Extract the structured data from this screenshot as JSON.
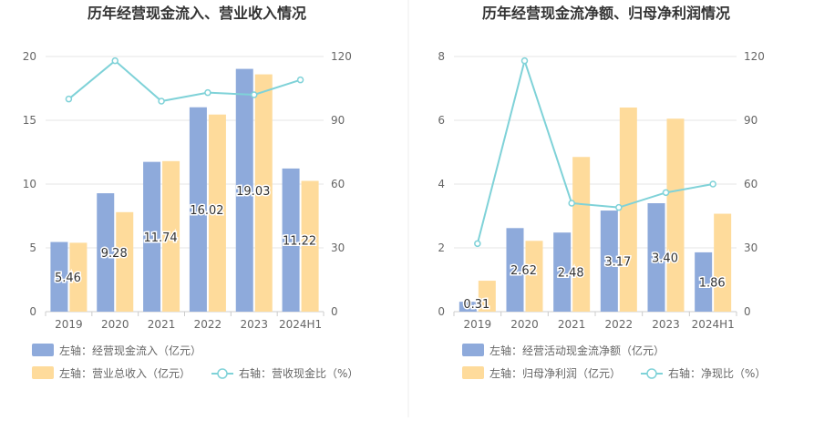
{
  "colors": {
    "bar_left": "#8eaadb",
    "bar_right": "#fedb9b",
    "line": "#7fd2d8",
    "axis_text": "#666666",
    "grid": "#e6e6e6",
    "title": "#333333",
    "divider": "#eeeeee"
  },
  "chart_data": [
    {
      "type": "bar",
      "title": "历年经营现金流入、营业收入情况",
      "categories": [
        "2019",
        "2020",
        "2021",
        "2022",
        "2023",
        "2024H1"
      ],
      "ylim_left": [
        0,
        20
      ],
      "yticks_left": [
        "0",
        "5",
        "10",
        "15",
        "20"
      ],
      "ylim_right": [
        0,
        120
      ],
      "yticks_right": [
        "0",
        "30",
        "60",
        "90",
        "120"
      ],
      "series": [
        {
          "name": "左轴：经营现金流入（亿元）",
          "axis": "left",
          "kind": "bar",
          "values": [
            5.46,
            9.28,
            11.74,
            16.02,
            19.03,
            11.22
          ],
          "labels": [
            "5.46",
            "9.28",
            "11.74",
            "16.02",
            "19.03",
            "11.22"
          ]
        },
        {
          "name": "左轴：营业总收入（亿元）",
          "axis": "left",
          "kind": "bar",
          "values": [
            5.4,
            7.8,
            11.8,
            15.45,
            18.6,
            10.25
          ]
        },
        {
          "name": "右轴：营收现金比（%）",
          "axis": "right",
          "kind": "line",
          "values": [
            100,
            118,
            99,
            103,
            102,
            109
          ]
        }
      ]
    },
    {
      "type": "bar",
      "title": "历年经营现金流净额、归母净利润情况",
      "categories": [
        "2019",
        "2020",
        "2021",
        "2022",
        "2023",
        "2024H1"
      ],
      "ylim_left": [
        0,
        8
      ],
      "yticks_left": [
        "0",
        "2",
        "4",
        "6",
        "8"
      ],
      "ylim_right": [
        0,
        120
      ],
      "yticks_right": [
        "0",
        "30",
        "60",
        "90",
        "120"
      ],
      "series": [
        {
          "name": "左轴：经营活动现金流净额（亿元）",
          "axis": "left",
          "kind": "bar",
          "values": [
            0.31,
            2.62,
            2.48,
            3.17,
            3.4,
            1.86
          ],
          "labels": [
            "0.31",
            "2.62",
            "2.48",
            "3.17",
            "3.40",
            "1.86"
          ]
        },
        {
          "name": "左轴：归母净利润（亿元）",
          "axis": "left",
          "kind": "bar",
          "values": [
            0.97,
            2.22,
            4.85,
            6.4,
            6.05,
            3.07
          ]
        },
        {
          "name": "右轴：净现比（%）",
          "axis": "right",
          "kind": "line",
          "values": [
            32,
            118,
            51,
            49,
            56,
            60
          ]
        }
      ]
    }
  ]
}
